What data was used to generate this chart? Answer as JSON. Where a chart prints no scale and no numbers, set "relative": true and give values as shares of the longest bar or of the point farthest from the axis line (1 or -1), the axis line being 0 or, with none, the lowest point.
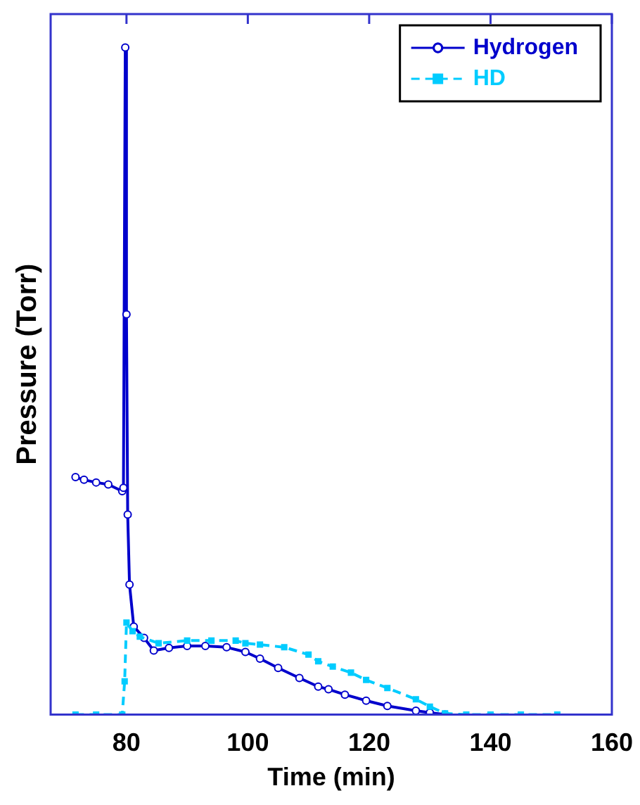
{
  "chart_data": {
    "type": "line",
    "xlabel": "Time (min)",
    "ylabel": "Pressure (Torr)",
    "relative": true,
    "xlim": [
      67.5,
      160
    ],
    "xticks": [
      80,
      100,
      120,
      140,
      160
    ],
    "grid": false,
    "legend": "top right",
    "series": [
      {
        "name": "Hydrogen",
        "color": "#0000cc",
        "marker": "circle",
        "line_style": "solid",
        "x": [
          71.6,
          73,
          75,
          77,
          79.3,
          79.5,
          79.8,
          80,
          80.2,
          80.5,
          81.2,
          82.9,
          84.5,
          87,
          90,
          93,
          96.5,
          99.6,
          102,
          105,
          108.5,
          111.6,
          113.3,
          116,
          119.5,
          123,
          127.7,
          130,
          132.5
        ],
        "values": [
          0.356,
          0.352,
          0.348,
          0.345,
          0.335,
          0.34,
          1.0,
          0.6,
          0.3,
          0.195,
          0.132,
          0.115,
          0.096,
          0.1,
          0.103,
          0.103,
          0.101,
          0.094,
          0.084,
          0.07,
          0.055,
          0.042,
          0.038,
          0.03,
          0.021,
          0.013,
          0.006,
          0.003,
          0
        ]
      },
      {
        "name": "HD",
        "color": "#00ccff",
        "marker": "square",
        "line_style": "dashed",
        "x": [
          71.6,
          75,
          79.3,
          79.7,
          80,
          81,
          82.2,
          85.3,
          90,
          94,
          98,
          99.6,
          102,
          106,
          110,
          111.6,
          114,
          117,
          119.5,
          123,
          127.7,
          130,
          132.5,
          136,
          140,
          145,
          151
        ],
        "values": [
          0,
          0,
          0,
          0.05,
          0.138,
          0.125,
          0.117,
          0.107,
          0.111,
          0.111,
          0.111,
          0.107,
          0.105,
          0.101,
          0.09,
          0.08,
          0.072,
          0.063,
          0.052,
          0.04,
          0.023,
          0.012,
          0.002,
          0,
          0,
          0,
          0
        ]
      }
    ]
  }
}
